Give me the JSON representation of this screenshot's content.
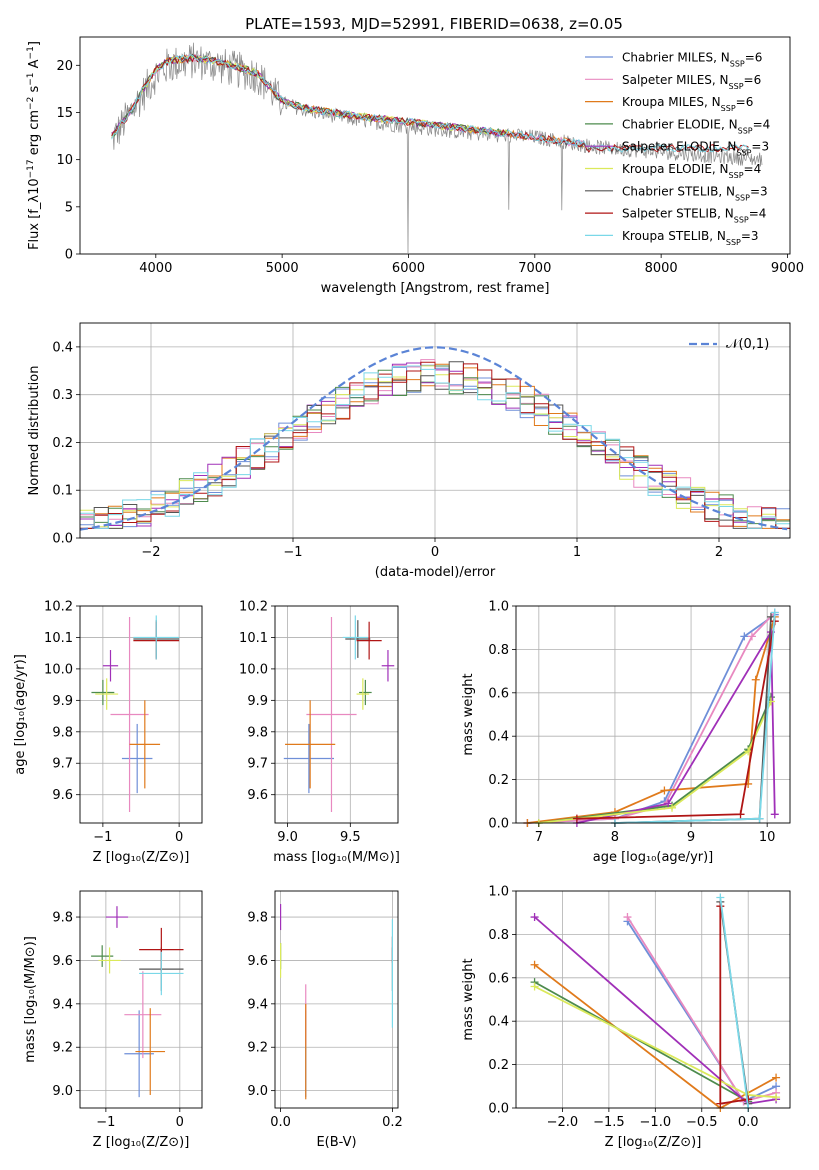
{
  "figure_title": "PLATE=1593, MJD=52991, FIBERID=0638, z=0.05",
  "colors": {
    "Chabrier MILES": "#6f8fd8",
    "Salpeter MILES": "#e889c0",
    "Kroupa MILES": "#e07a1b",
    "Chabrier ELODIE": "#4d8b4d",
    "Salpeter ELODIE": "#a030b8",
    "Kroupa ELODIE": "#dbe95a",
    "Chabrier STELIB": "#555555",
    "Salpeter STELIB": "#b01515",
    "Kroupa STELIB": "#7ad8e8"
  },
  "legend_entries": [
    {
      "model": "Chabrier MILES",
      "n": "6"
    },
    {
      "model": "Salpeter MILES",
      "n": "6"
    },
    {
      "model": "Kroupa MILES",
      "n": "6"
    },
    {
      "model": "Chabrier ELODIE",
      "n": "4"
    },
    {
      "model": "Salpeter ELODIE",
      "n": "3"
    },
    {
      "model": "Kroupa ELODIE",
      "n": "4"
    },
    {
      "model": "Chabrier STELIB",
      "n": "3"
    },
    {
      "model": "Salpeter STELIB",
      "n": "4"
    },
    {
      "model": "Kroupa STELIB",
      "n": "3"
    }
  ],
  "chart_data": [
    {
      "id": "spectrum",
      "type": "line",
      "xlabel": "wavelength [Angstrom, rest frame]",
      "ylabel": "Flux [f_λ10^-17 erg cm^-2 s^-1 A^-1]",
      "xlim": [
        3400,
        9020
      ],
      "ylim": [
        0,
        23
      ],
      "xticks": [
        4000,
        5000,
        6000,
        7000,
        8000,
        9000
      ],
      "yticks": [
        0,
        5,
        10,
        15,
        20
      ],
      "observed_continuum": [
        [
          3650,
          12
        ],
        [
          3800,
          15
        ],
        [
          3900,
          17
        ],
        [
          4000,
          19
        ],
        [
          4100,
          20
        ],
        [
          4300,
          20.5
        ],
        [
          4500,
          20
        ],
        [
          4800,
          19
        ],
        [
          5000,
          16
        ],
        [
          5200,
          15.2
        ],
        [
          5600,
          14.2
        ],
        [
          6000,
          13.5
        ],
        [
          6500,
          12.8
        ],
        [
          7000,
          12.4
        ],
        [
          7500,
          11.3
        ],
        [
          8000,
          10.8
        ],
        [
          8500,
          10.3
        ],
        [
          8800,
          10.0
        ]
      ],
      "model_continuum": [
        [
          3650,
          12.5
        ],
        [
          3800,
          15
        ],
        [
          3900,
          17.5
        ],
        [
          4000,
          19.5
        ],
        [
          4100,
          20.5
        ],
        [
          4300,
          20.8
        ],
        [
          4500,
          20.4
        ],
        [
          4800,
          19.2
        ],
        [
          5000,
          16.2
        ],
        [
          5200,
          15.4
        ],
        [
          5600,
          14.6
        ],
        [
          6000,
          14.0
        ],
        [
          6500,
          13.2
        ],
        [
          7000,
          12.4
        ],
        [
          7400,
          11.6
        ]
      ],
      "series_end_wavelength": {
        "MILES": 7400,
        "ELODIE": 6800,
        "STELIB": 8700
      }
    },
    {
      "id": "residual_hist",
      "type": "bar",
      "xlabel": "(data-model)/error",
      "ylabel": "Normed distribution",
      "xlim": [
        -2.5,
        2.5
      ],
      "ylim": [
        0,
        0.45
      ],
      "xticks": [
        -2,
        -1,
        0,
        1,
        2
      ],
      "yticks": [
        0.0,
        0.1,
        0.2,
        0.3,
        0.4
      ],
      "bin_width": 0.1,
      "reference_label": "𝒩(0,1)",
      "reference_color": "#5b84d6"
    },
    {
      "id": "age_vs_Z",
      "type": "scatter",
      "xlabel": "Z [log10(Z/Z⊙)]",
      "ylabel": "age [log10(age/yr)]",
      "xlim": [
        -1.3,
        0.3
      ],
      "ylim": [
        9.51,
        10.2
      ],
      "xticks": [
        -1,
        0
      ],
      "yticks": [
        9.6,
        9.7,
        9.8,
        9.9,
        10.0,
        10.1,
        10.2
      ],
      "points": [
        {
          "model": "Chabrier MILES",
          "x": -0.55,
          "y": 9.715,
          "xerr": 0.2,
          "yerr": 0.11
        },
        {
          "model": "Salpeter MILES",
          "x": -0.65,
          "y": 9.855,
          "xerr": 0.25,
          "yerr": 0.31
        },
        {
          "model": "Kroupa MILES",
          "x": -0.45,
          "y": 9.76,
          "xerr": 0.2,
          "yerr": 0.14
        },
        {
          "model": "Chabrier ELODIE",
          "x": -1.0,
          "y": 9.925,
          "xerr": 0.15,
          "yerr": 0.04
        },
        {
          "model": "Salpeter ELODIE",
          "x": -0.9,
          "y": 10.01,
          "xerr": 0.1,
          "yerr": 0.05
        },
        {
          "model": "Kroupa ELODIE",
          "x": -0.95,
          "y": 9.92,
          "xerr": 0.15,
          "yerr": 0.05
        },
        {
          "model": "Chabrier STELIB",
          "x": -0.3,
          "y": 10.095,
          "xerr": 0.3,
          "yerr": 0.06
        },
        {
          "model": "Salpeter STELIB",
          "x": -0.3,
          "y": 10.09,
          "xerr": 0.3,
          "yerr": 0.06
        },
        {
          "model": "Kroupa STELIB",
          "x": -0.3,
          "y": 10.1,
          "xerr": 0.3,
          "yerr": 0.07
        }
      ]
    },
    {
      "id": "age_vs_mass",
      "type": "scatter",
      "xlabel": "mass [log10(M/M⊙)]",
      "ylabel": "",
      "xlim": [
        8.9,
        9.88
      ],
      "ylim": [
        9.51,
        10.2
      ],
      "xticks": [
        9.0,
        9.5
      ],
      "yticks": [
        9.6,
        9.7,
        9.8,
        9.9,
        10.0,
        10.1,
        10.2
      ],
      "points": [
        {
          "model": "Chabrier MILES",
          "x": 9.17,
          "y": 9.715,
          "xerr": 0.2,
          "yerr": 0.11
        },
        {
          "model": "Salpeter MILES",
          "x": 9.35,
          "y": 9.855,
          "xerr": 0.2,
          "yerr": 0.31
        },
        {
          "model": "Kroupa MILES",
          "x": 9.18,
          "y": 9.76,
          "xerr": 0.2,
          "yerr": 0.14
        },
        {
          "model": "Chabrier ELODIE",
          "x": 9.62,
          "y": 9.925,
          "xerr": 0.05,
          "yerr": 0.04
        },
        {
          "model": "Salpeter ELODIE",
          "x": 9.8,
          "y": 10.01,
          "xerr": 0.05,
          "yerr": 0.05
        },
        {
          "model": "Kroupa ELODIE",
          "x": 9.6,
          "y": 9.92,
          "xerr": 0.05,
          "yerr": 0.05
        },
        {
          "model": "Chabrier STELIB",
          "x": 9.56,
          "y": 10.095,
          "xerr": 0.1,
          "yerr": 0.06
        },
        {
          "model": "Salpeter STELIB",
          "x": 9.65,
          "y": 10.09,
          "xerr": 0.1,
          "yerr": 0.06
        },
        {
          "model": "Kroupa STELIB",
          "x": 9.54,
          "y": 10.1,
          "xerr": 0.1,
          "yerr": 0.07
        }
      ]
    },
    {
      "id": "mass_weight_vs_age",
      "type": "line",
      "xlabel": "age [log10(age/yr)]",
      "ylabel": "mass weight",
      "xlim": [
        6.7,
        10.3
      ],
      "ylim": [
        0,
        1
      ],
      "xticks": [
        7,
        8,
        9,
        10
      ],
      "yticks": [
        0.0,
        0.2,
        0.4,
        0.6,
        0.8,
        1.0
      ],
      "series": [
        {
          "model": "Chabrier MILES",
          "points": [
            [
              6.85,
              0
            ],
            [
              8.0,
              0.02
            ],
            [
              8.65,
              0.1
            ],
            [
              9.7,
              0.86
            ],
            [
              10.1,
              0.96
            ]
          ]
        },
        {
          "model": "Salpeter MILES",
          "points": [
            [
              6.85,
              0
            ],
            [
              8.0,
              0.02
            ],
            [
              8.65,
              0.08
            ],
            [
              9.8,
              0.86
            ],
            [
              10.1,
              0.97
            ]
          ]
        },
        {
          "model": "Kroupa MILES",
          "points": [
            [
              6.85,
              0
            ],
            [
              8.0,
              0.05
            ],
            [
              8.65,
              0.15
            ],
            [
              9.75,
              0.18
            ],
            [
              9.85,
              0.66
            ],
            [
              10.1,
              0.95
            ]
          ]
        },
        {
          "model": "Chabrier ELODIE",
          "points": [
            [
              7.0,
              0
            ],
            [
              8.75,
              0.08
            ],
            [
              9.75,
              0.34
            ],
            [
              10.05,
              0.58
            ]
          ]
        },
        {
          "model": "Salpeter ELODIE",
          "points": [
            [
              7.5,
              0
            ],
            [
              8.7,
              0.09
            ],
            [
              10.05,
              0.88
            ],
            [
              10.1,
              0.04
            ]
          ]
        },
        {
          "model": "Kroupa ELODIE",
          "points": [
            [
              7.0,
              0
            ],
            [
              8.75,
              0.07
            ],
            [
              9.75,
              0.33
            ],
            [
              10.05,
              0.56
            ]
          ]
        },
        {
          "model": "Chabrier STELIB",
          "points": [
            [
              8.0,
              0
            ],
            [
              9.9,
              0.02
            ],
            [
              10.05,
              0.95
            ]
          ]
        },
        {
          "model": "Salpeter STELIB",
          "points": [
            [
              7.5,
              0.02
            ],
            [
              9.65,
              0.04
            ],
            [
              10.1,
              0.93
            ]
          ]
        },
        {
          "model": "Kroupa STELIB",
          "points": [
            [
              8.0,
              0
            ],
            [
              9.9,
              0.02
            ],
            [
              10.1,
              0.97
            ]
          ]
        }
      ]
    },
    {
      "id": "mass_vs_Z",
      "type": "scatter",
      "xlabel": "Z [log10(Z/Z⊙)]",
      "ylabel": "mass [log10(M/M⊙)]",
      "xlim": [
        -1.35,
        0.3
      ],
      "ylim": [
        8.92,
        9.92
      ],
      "xticks": [
        -1,
        0
      ],
      "yticks": [
        9.0,
        9.2,
        9.4,
        9.6,
        9.8
      ],
      "points": [
        {
          "model": "Chabrier MILES",
          "x": -0.55,
          "y": 9.17,
          "xerr": 0.2,
          "yerr": 0.2
        },
        {
          "model": "Salpeter MILES",
          "x": -0.5,
          "y": 9.35,
          "xerr": 0.25,
          "yerr": 0.2
        },
        {
          "model": "Kroupa MILES",
          "x": -0.4,
          "y": 9.18,
          "xerr": 0.2,
          "yerr": 0.2
        },
        {
          "model": "Chabrier ELODIE",
          "x": -1.05,
          "y": 9.62,
          "xerr": 0.15,
          "yerr": 0.05
        },
        {
          "model": "Salpeter ELODIE",
          "x": -0.85,
          "y": 9.8,
          "xerr": 0.15,
          "yerr": 0.05
        },
        {
          "model": "Kroupa ELODIE",
          "x": -0.95,
          "y": 9.6,
          "xerr": 0.15,
          "yerr": 0.06
        },
        {
          "model": "Chabrier STELIB",
          "x": -0.25,
          "y": 9.56,
          "xerr": 0.3,
          "yerr": 0.1
        },
        {
          "model": "Salpeter STELIB",
          "x": -0.25,
          "y": 9.65,
          "xerr": 0.3,
          "yerr": 0.1
        },
        {
          "model": "Kroupa STELIB",
          "x": -0.25,
          "y": 9.54,
          "xerr": 0.3,
          "yerr": 0.1
        }
      ]
    },
    {
      "id": "mass_vs_ebv",
      "type": "scatter",
      "xlabel": "E(B-V)",
      "ylabel": "",
      "xlim": [
        -0.01,
        0.21
      ],
      "ylim": [
        8.92,
        9.92
      ],
      "xticks": [
        0.0,
        0.2
      ],
      "yticks": [
        9.0,
        9.2,
        9.4,
        9.6,
        9.8
      ],
      "points": [
        {
          "model": "Chabrier MILES",
          "x": 0.045,
          "y": 9.17,
          "xerr": 0,
          "yerr": 0.2
        },
        {
          "model": "Salpeter MILES",
          "x": 0.045,
          "y": 9.35,
          "xerr": 0,
          "yerr": 0.14
        },
        {
          "model": "Kroupa MILES",
          "x": 0.045,
          "y": 9.18,
          "xerr": 0,
          "yerr": 0.22
        },
        {
          "model": "Chabrier ELODIE",
          "x": 0.0,
          "y": 9.62,
          "xerr": 0,
          "yerr": 0.06
        },
        {
          "model": "Salpeter ELODIE",
          "x": 0.0,
          "y": 9.8,
          "xerr": 0,
          "yerr": 0.06
        },
        {
          "model": "Kroupa ELODIE",
          "x": 0.0,
          "y": 9.6,
          "xerr": 0,
          "yerr": 0.08
        },
        {
          "model": "Chabrier STELIB",
          "x": 0.2,
          "y": 9.56,
          "xerr": 0,
          "yerr": 0.1
        },
        {
          "model": "Salpeter STELIB",
          "x": 0.2,
          "y": 9.65,
          "xerr": 0,
          "yerr": 0.06
        },
        {
          "model": "Kroupa STELIB",
          "x": 0.2,
          "y": 9.54,
          "xerr": 0,
          "yerr": 0.25
        }
      ]
    },
    {
      "id": "mass_weight_vs_Z",
      "type": "line",
      "xlabel": "Z [log10(Z/Z⊙)]",
      "ylabel": "mass weight",
      "xlim": [
        -2.5,
        0.45
      ],
      "ylim": [
        0,
        1
      ],
      "xticks": [
        -2.0,
        -1.5,
        -1.0,
        -0.5,
        0.0
      ],
      "yticks": [
        0.0,
        0.2,
        0.4,
        0.6,
        0.8,
        1.0
      ],
      "series": [
        {
          "model": "Chabrier MILES",
          "points": [
            [
              -1.3,
              0.86
            ],
            [
              -0.05,
              0.03
            ],
            [
              0.3,
              0.1
            ]
          ]
        },
        {
          "model": "Salpeter MILES",
          "points": [
            [
              -1.3,
              0.88
            ],
            [
              -0.05,
              0.03
            ],
            [
              0.3,
              0.07
            ]
          ]
        },
        {
          "model": "Kroupa MILES",
          "points": [
            [
              -2.3,
              0.66
            ],
            [
              -0.3,
              0.0
            ],
            [
              0.3,
              0.14
            ]
          ]
        },
        {
          "model": "Chabrier ELODIE",
          "points": [
            [
              -2.3,
              0.58
            ],
            [
              0.0,
              0.03
            ]
          ]
        },
        {
          "model": "Salpeter ELODIE",
          "points": [
            [
              -2.3,
              0.88
            ],
            [
              0.0,
              0.02
            ],
            [
              0.3,
              0.04
            ]
          ]
        },
        {
          "model": "Kroupa ELODIE",
          "points": [
            [
              -2.3,
              0.56
            ],
            [
              0.0,
              0.06
            ],
            [
              0.3,
              0.05
            ]
          ]
        },
        {
          "model": "Chabrier STELIB",
          "points": [
            [
              -0.3,
              0.95
            ],
            [
              0.0,
              0.02
            ]
          ]
        },
        {
          "model": "Salpeter STELIB",
          "points": [
            [
              -0.3,
              0.93
            ],
            [
              -0.3,
              0.02
            ],
            [
              0.0,
              0.04
            ]
          ]
        },
        {
          "model": "Kroupa STELIB",
          "points": [
            [
              -0.3,
              0.97
            ],
            [
              0.0,
              0.0
            ]
          ]
        }
      ]
    }
  ]
}
